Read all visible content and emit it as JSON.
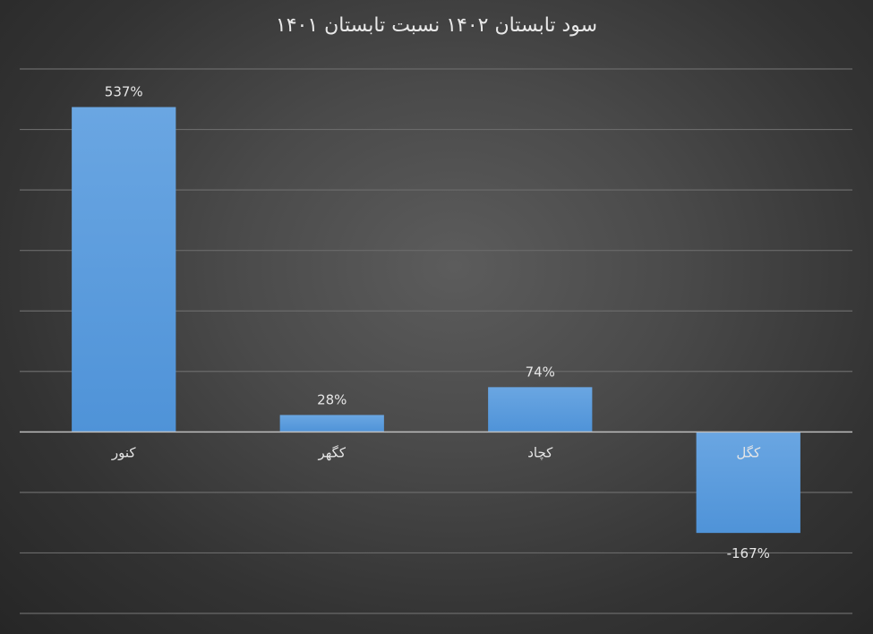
{
  "chart_data": {
    "type": "bar",
    "title": "سود تابستان ۱۴۰۲ نسبت تابستان ۱۴۰۱",
    "xlabel": "",
    "ylabel": "",
    "categories": [
      "کنور",
      "کگهر",
      "کچاد",
      "کگل"
    ],
    "values": [
      537,
      28,
      74,
      -167
    ],
    "value_labels": [
      "537%",
      "28%",
      "74%",
      "-167%"
    ],
    "unit": "%",
    "ylim": [
      -300,
      600
    ],
    "grid_step": 100,
    "grid": true,
    "legend": "none",
    "colors": {
      "bar": "#4f93d8",
      "bar_top": "#6aa6e2",
      "grid": "#6a6a6a",
      "axis": "#bdbdbd",
      "text": "#e6e6e6"
    }
  }
}
